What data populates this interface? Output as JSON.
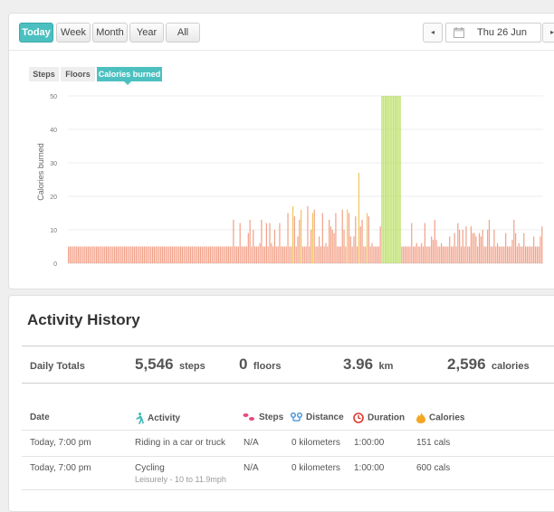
{
  "range_buttons": [
    "Today",
    "Week",
    "Month",
    "Year",
    "All"
  ],
  "active_range": "Today",
  "date_picker": {
    "prev_icon": "◂",
    "next_icon": "▸",
    "value": "Thu 26 Jun"
  },
  "metric_tabs": [
    "Steps",
    "Floors",
    "Calories burned"
  ],
  "active_metric": "Calories burned",
  "colors": {
    "accent": "#4cc0c0",
    "bar_normal": "#f2a28a",
    "bar_medium": "#f0c75e",
    "bar_high": "#b6dd5b"
  },
  "chart_data": {
    "type": "bar",
    "title": "",
    "xlabel": "",
    "ylabel": "Calories burned",
    "ylim": [
      0,
      50
    ],
    "yticks": [
      0,
      10,
      20,
      30,
      40,
      50
    ],
    "grid": true,
    "bins": 288,
    "baseline_value": 5,
    "baseline_range": [
      0,
      103
    ],
    "extra_spikes": [
      {
        "i": 100,
        "v": 13
      },
      {
        "i": 104,
        "v": 12
      },
      {
        "i": 110,
        "v": 13
      },
      {
        "i": 117,
        "v": 13
      },
      {
        "i": 122,
        "v": 12
      },
      {
        "i": 128,
        "v": 12
      },
      {
        "i": 133,
        "v": 15
      },
      {
        "i": 137,
        "v": 14
      },
      {
        "i": 140,
        "v": 13
      },
      {
        "i": 145,
        "v": 17
      },
      {
        "i": 149,
        "v": 16
      },
      {
        "i": 154,
        "v": 15
      },
      {
        "i": 158,
        "v": 13
      },
      {
        "i": 162,
        "v": 15
      },
      {
        "i": 166,
        "v": 16
      },
      {
        "i": 170,
        "v": 15
      },
      {
        "i": 174,
        "v": 14
      },
      {
        "i": 178,
        "v": 13
      },
      {
        "i": 182,
        "v": 14
      },
      {
        "i": 190,
        "v": 14
      },
      {
        "i": 198,
        "v": 14
      },
      {
        "i": 208,
        "v": 12
      },
      {
        "i": 216,
        "v": 12
      },
      {
        "i": 222,
        "v": 13
      },
      {
        "i": 236,
        "v": 12
      },
      {
        "i": 255,
        "v": 13
      },
      {
        "i": 270,
        "v": 13
      },
      {
        "i": 282,
        "v": 8
      }
    ],
    "medium_bars": [
      {
        "i": 136,
        "v": 17
      },
      {
        "i": 141,
        "v": 16
      },
      {
        "i": 148,
        "v": 15
      },
      {
        "i": 169,
        "v": 16
      },
      {
        "i": 176,
        "v": 27
      },
      {
        "i": 181,
        "v": 15
      }
    ],
    "high_range": [
      190,
      201
    ],
    "high_value": 50
  },
  "history": {
    "title": "Activity History",
    "totals_label": "Daily Totals",
    "totals": [
      {
        "value": "5,546",
        "unit": "steps"
      },
      {
        "value": "0",
        "unit": "floors"
      },
      {
        "value": "3.96",
        "unit": "km"
      },
      {
        "value": "2,596",
        "unit": "calories"
      }
    ],
    "columns": [
      "Date",
      "Activity",
      "Steps",
      "Distance",
      "Duration",
      "Calories"
    ],
    "rows": [
      {
        "date": "Today, 7:00 pm",
        "activity": "Riding in a car or truck",
        "sub": "",
        "steps": "N/A",
        "distance": "0 kilometers",
        "duration": "1:00:00",
        "calories": "151 cals"
      },
      {
        "date": "Today, 7:00 pm",
        "activity": "Cycling",
        "sub": "Leisurely - 10 to 11.9mph",
        "steps": "N/A",
        "distance": "0 kilometers",
        "duration": "1:00:00",
        "calories": "600 cals"
      }
    ]
  }
}
